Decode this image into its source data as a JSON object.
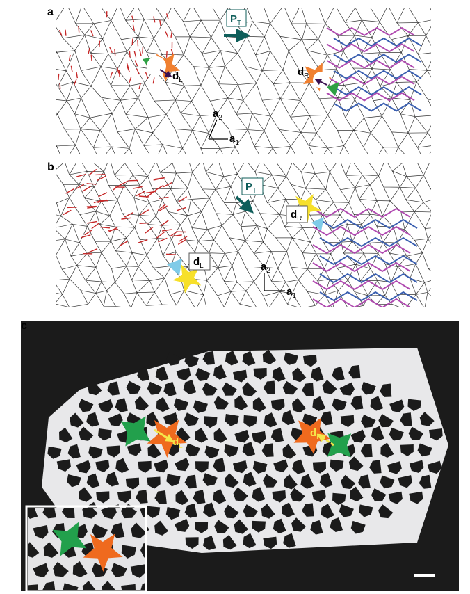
{
  "panels": [
    {
      "label": "a",
      "polarization": {
        "symbol": "P",
        "subscript": "T"
      },
      "defects": [
        {
          "symbol": "d",
          "subscript": "L"
        },
        {
          "symbol": "d",
          "subscript": "R"
        }
      ],
      "lattice_vectors": [
        {
          "symbol": "a",
          "subscript": "2"
        },
        {
          "symbol": "a",
          "subscript": "1"
        }
      ]
    },
    {
      "label": "b",
      "polarization": {
        "symbol": "P",
        "subscript": "T"
      },
      "defects": [
        {
          "symbol": "d",
          "subscript": "L"
        },
        {
          "symbol": "d",
          "subscript": "R"
        }
      ],
      "lattice_vectors": [
        {
          "symbol": "a",
          "subscript": "2"
        },
        {
          "symbol": "a",
          "subscript": "1"
        }
      ]
    },
    {
      "label": "c",
      "defects": [
        {
          "symbol": "d",
          "subscript": "L"
        },
        {
          "symbol": "d",
          "subscript": "R"
        }
      ]
    }
  ]
}
